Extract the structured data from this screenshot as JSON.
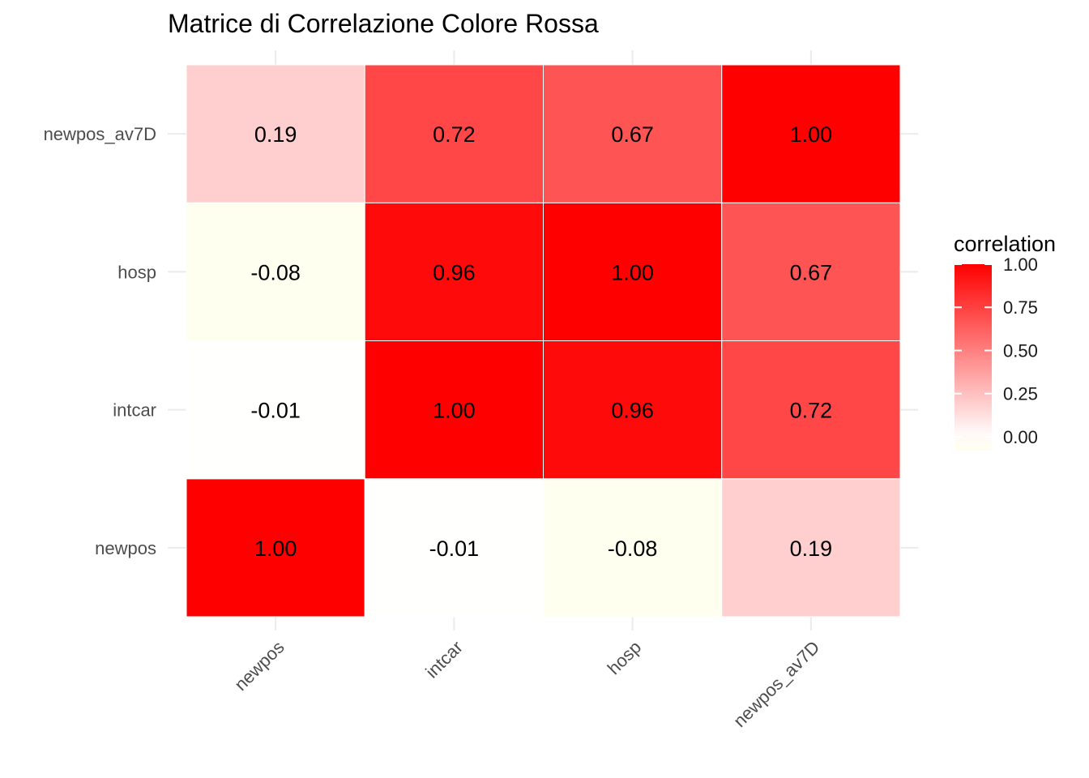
{
  "chart_data": {
    "type": "heatmap",
    "title": "Matrice di Correlazione Colore Rossa",
    "xlabel": "",
    "ylabel": "",
    "x_categories": [
      "newpos",
      "intcar",
      "hosp",
      "newpos_av7D"
    ],
    "y_categories": [
      "newpos",
      "intcar",
      "hosp",
      "newpos_av7D"
    ],
    "values": [
      [
        1.0,
        -0.01,
        -0.08,
        0.19
      ],
      [
        -0.01,
        1.0,
        0.96,
        0.72
      ],
      [
        -0.08,
        0.96,
        1.0,
        0.67
      ],
      [
        0.19,
        0.72,
        0.67,
        1.0
      ]
    ],
    "value_labels": [
      [
        "1.00",
        "-0.01",
        "-0.08",
        "0.19"
      ],
      [
        "-0.01",
        "1.00",
        "0.96",
        "0.72"
      ],
      [
        "-0.08",
        "0.96",
        "1.00",
        "0.67"
      ],
      [
        "0.19",
        "0.72",
        "0.67",
        "1.00"
      ]
    ],
    "color_scale": {
      "low": "#FFFFF0",
      "mid": "#FFFFFF",
      "high": "#FF0000",
      "min": -0.08,
      "max": 1.0
    },
    "grid": true,
    "legend": {
      "title": "correlation",
      "position": "right",
      "breaks": [
        0.0,
        0.25,
        0.5,
        0.75,
        1.0
      ],
      "labels": [
        "0.00",
        "0.25",
        "0.50",
        "0.75",
        "1.00"
      ]
    }
  }
}
